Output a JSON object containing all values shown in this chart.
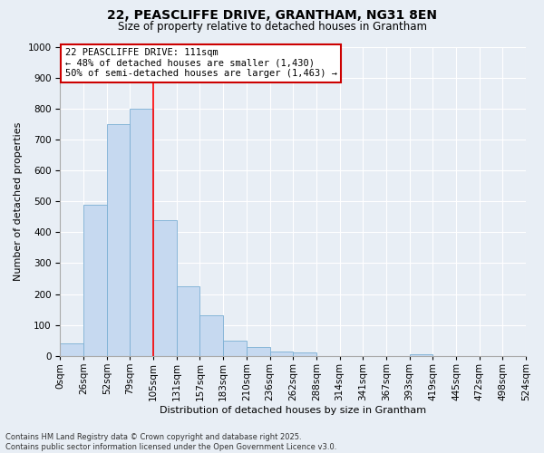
{
  "title": "22, PEASCLIFFE DRIVE, GRANTHAM, NG31 8EN",
  "subtitle": "Size of property relative to detached houses in Grantham",
  "xlabel": "Distribution of detached houses by size in Grantham",
  "ylabel": "Number of detached properties",
  "bar_values": [
    40,
    490,
    750,
    800,
    440,
    225,
    130,
    50,
    30,
    15,
    10,
    0,
    0,
    0,
    0,
    5,
    0,
    0,
    0,
    0
  ],
  "bin_labels": [
    "0sqm",
    "26sqm",
    "52sqm",
    "79sqm",
    "105sqm",
    "131sqm",
    "157sqm",
    "183sqm",
    "210sqm",
    "236sqm",
    "262sqm",
    "288sqm",
    "314sqm",
    "341sqm",
    "367sqm",
    "393sqm",
    "419sqm",
    "445sqm",
    "472sqm",
    "498sqm",
    "524sqm"
  ],
  "bar_color": "#c6d9f0",
  "bar_edge_color": "#7bafd4",
  "red_line_x": 4.0,
  "annotation_text": "22 PEASCLIFFE DRIVE: 111sqm\n← 48% of detached houses are smaller (1,430)\n50% of semi-detached houses are larger (1,463) →",
  "annotation_box_color": "#ffffff",
  "annotation_box_edge_color": "#cc0000",
  "ylim": [
    0,
    1000
  ],
  "yticks": [
    0,
    100,
    200,
    300,
    400,
    500,
    600,
    700,
    800,
    900,
    1000
  ],
  "footer_line1": "Contains HM Land Registry data © Crown copyright and database right 2025.",
  "footer_line2": "Contains public sector information licensed under the Open Government Licence v3.0.",
  "background_color": "#e8eef5",
  "plot_bg_color": "#e8eef5",
  "grid_color": "#ffffff",
  "title_fontsize": 10,
  "subtitle_fontsize": 8.5,
  "xlabel_fontsize": 8,
  "ylabel_fontsize": 8,
  "tick_fontsize": 7.5,
  "annotation_fontsize": 7.5,
  "footer_fontsize": 6
}
